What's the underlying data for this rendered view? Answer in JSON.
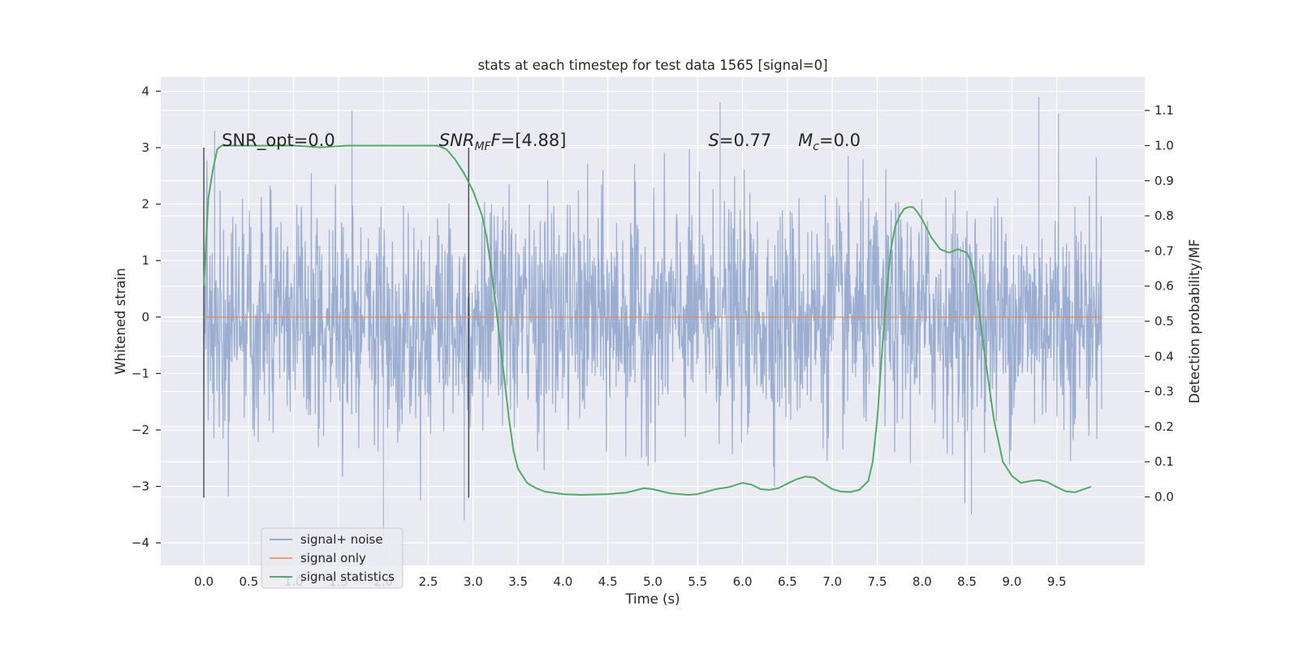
{
  "chart_data": {
    "type": "line",
    "title": "stats at each timestep for test data 1565 [signal=0]",
    "xlabel": "Time (s)",
    "ylabel": "Whitened strain",
    "ylabel_right": "Detection probability/MF",
    "xlim": [
      -0.48,
      10.48
    ],
    "ylim": [
      -4.4,
      4.25
    ],
    "ylim_right": [
      -0.195,
      1.195
    ],
    "x_ticks": [
      "0.0",
      "0.5",
      "1.0",
      "1.5",
      "2.0",
      "2.5",
      "3.0",
      "3.5",
      "4.0",
      "4.5",
      "5.0",
      "5.5",
      "6.0",
      "6.5",
      "7.0",
      "7.5",
      "8.0",
      "8.5",
      "9.0",
      "9.5"
    ],
    "y_ticks": [
      "4",
      "3",
      "2",
      "1",
      "0",
      "−1",
      "−2",
      "−3",
      "−4"
    ],
    "y_right_ticks": [
      "1.1",
      "1.0",
      "0.9",
      "0.8",
      "0.7",
      "0.6",
      "0.5",
      "0.4",
      "0.3",
      "0.2",
      "0.1",
      "0.0"
    ],
    "background": "#eaeaf2",
    "grid": true,
    "legend_position": "lower-left",
    "annotations": {
      "snr_opt": "SNR_opt=0.0",
      "snr_mf_base": "SNR",
      "snr_mf_sub": "MF",
      "snr_mf_eq": "=[4.88]",
      "s_var": "S",
      "s_val": "=0.77",
      "mc_base": "M",
      "mc_sub": "c",
      "mc_val": "=0.0"
    },
    "vertical_markers": [
      {
        "x": 0.0,
        "y_range": [
          -3.2,
          3.0
        ]
      },
      {
        "x": 2.95,
        "y_range": [
          -3.2,
          3.0
        ]
      }
    ],
    "series": [
      {
        "name": "signal+ noise",
        "axis": "left",
        "color": "#4c72b0",
        "alpha": 0.5,
        "t_range": [
          0,
          10
        ],
        "envelope_sigma": 1.0,
        "peaks": [
          [
            0.12,
            3.3
          ],
          [
            1.65,
            3.65
          ],
          [
            2.9,
            -3.6
          ],
          [
            5.75,
            3.8
          ],
          [
            9.3,
            3.9
          ],
          [
            9.52,
            3.6
          ],
          [
            2.0,
            -4.0
          ],
          [
            8.55,
            -3.5
          ]
        ]
      },
      {
        "name": "signal only",
        "axis": "left",
        "color": "#dd8452",
        "x": [
          0.0,
          10.0
        ],
        "y": [
          0.0,
          0.0
        ]
      },
      {
        "name": "signal statistics",
        "axis": "right",
        "color": "#55a868",
        "x": [
          0.0,
          0.05,
          0.1,
          0.15,
          0.2,
          0.3,
          0.5,
          0.8,
          1.0,
          1.3,
          1.6,
          2.0,
          2.3,
          2.6,
          2.7,
          2.8,
          2.9,
          3.0,
          3.1,
          3.15,
          3.2,
          3.25,
          3.3,
          3.35,
          3.4,
          3.45,
          3.5,
          3.6,
          3.7,
          3.8,
          4.0,
          4.2,
          4.5,
          4.7,
          4.8,
          4.9,
          5.0,
          5.2,
          5.4,
          5.5,
          5.7,
          5.85,
          6.0,
          6.1,
          6.2,
          6.3,
          6.4,
          6.5,
          6.6,
          6.7,
          6.8,
          6.9,
          7.0,
          7.1,
          7.2,
          7.3,
          7.4,
          7.45,
          7.5,
          7.55,
          7.6,
          7.65,
          7.7,
          7.75,
          7.8,
          7.85,
          7.9,
          7.95,
          8.0,
          8.1,
          8.2,
          8.3,
          8.4,
          8.5,
          8.55,
          8.6,
          8.65,
          8.7,
          8.75,
          8.8,
          8.85,
          8.9,
          9.0,
          9.1,
          9.2,
          9.3,
          9.4,
          9.5,
          9.6,
          9.7,
          9.8,
          9.88
        ],
        "y": [
          0.6,
          0.85,
          0.93,
          0.99,
          1.0,
          1.0,
          1.0,
          1.0,
          1.0,
          0.995,
          1.0,
          1.0,
          1.0,
          1.0,
          0.99,
          0.96,
          0.92,
          0.87,
          0.8,
          0.74,
          0.65,
          0.55,
          0.44,
          0.33,
          0.22,
          0.13,
          0.08,
          0.04,
          0.025,
          0.015,
          0.008,
          0.006,
          0.008,
          0.012,
          0.018,
          0.025,
          0.022,
          0.01,
          0.006,
          0.008,
          0.022,
          0.028,
          0.04,
          0.035,
          0.022,
          0.02,
          0.025,
          0.038,
          0.05,
          0.058,
          0.055,
          0.038,
          0.022,
          0.015,
          0.014,
          0.02,
          0.045,
          0.1,
          0.22,
          0.4,
          0.57,
          0.7,
          0.77,
          0.8,
          0.82,
          0.825,
          0.825,
          0.81,
          0.79,
          0.74,
          0.705,
          0.695,
          0.705,
          0.695,
          0.665,
          0.6,
          0.5,
          0.4,
          0.31,
          0.22,
          0.16,
          0.1,
          0.06,
          0.04,
          0.045,
          0.048,
          0.042,
          0.028,
          0.016,
          0.013,
          0.022,
          0.029
        ]
      }
    ]
  }
}
